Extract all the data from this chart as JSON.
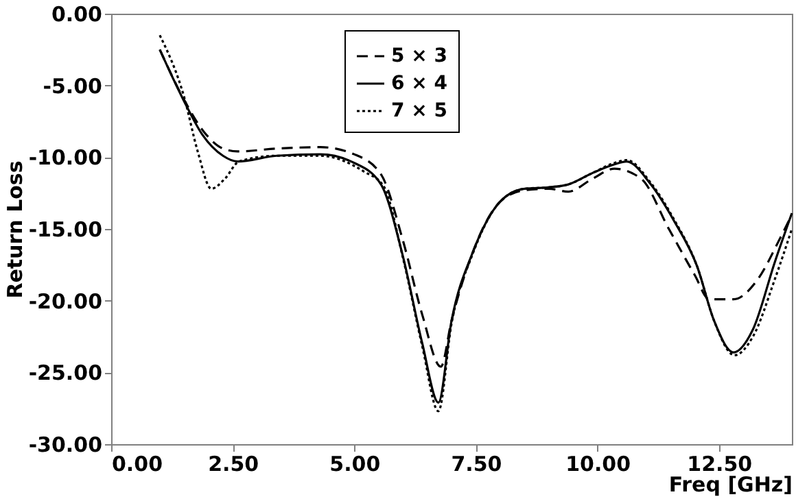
{
  "chart_data": {
    "type": "line",
    "xlabel": "Freq [GHz]",
    "ylabel": "Return Loss",
    "xlim": [
      0,
      14
    ],
    "xticks": [
      {
        "value": 0,
        "label": "0.00"
      },
      {
        "value": 2.5,
        "label": "2.50"
      },
      {
        "value": 5,
        "label": "5.00"
      },
      {
        "value": 7.5,
        "label": "7.50"
      },
      {
        "value": 10,
        "label": "10.00"
      },
      {
        "value": 12.5,
        "label": "12.50"
      }
    ],
    "ylim": [
      -30,
      0
    ],
    "yticks": [
      {
        "value": -30,
        "label": "-30.00"
      },
      {
        "value": -25,
        "label": "-25.00"
      },
      {
        "value": -20,
        "label": "-20.00"
      },
      {
        "value": -15,
        "label": "-15.00"
      },
      {
        "value": -10,
        "label": "-10.00"
      },
      {
        "value": -5,
        "label": "-5.00"
      },
      {
        "value": 0,
        "label": "0.00"
      }
    ],
    "grid": false,
    "legend": "top",
    "marker": "none",
    "series": [
      {
        "name": "5 × 3",
        "color": "#000000",
        "line_style": "dashed",
        "x": [
          1.0,
          1.5,
          1.9,
          2.3,
          2.6,
          3.4,
          4.3,
          5.0,
          5.55,
          6.0,
          6.4,
          6.78,
          7.0,
          7.44,
          8.0,
          8.5,
          9.0,
          9.4,
          9.9,
          10.35,
          10.9,
          11.47,
          12.0,
          12.3,
          12.8,
          13.3,
          13.75,
          14.0
        ],
        "values": [
          -2.5,
          -6.0,
          -8.2,
          -9.4,
          -9.6,
          -9.4,
          -9.3,
          -9.8,
          -11.2,
          -15.8,
          -21.0,
          -24.6,
          -21.4,
          -16.6,
          -13.1,
          -12.3,
          -12.2,
          -12.4,
          -11.5,
          -10.8,
          -11.5,
          -15.0,
          -18.2,
          -19.9,
          -19.9,
          -18.5,
          -15.7,
          -14.0
        ]
      },
      {
        "name": "6 × 4",
        "color": "#000000",
        "line_style": "solid",
        "x": [
          1.0,
          1.5,
          1.87,
          2.3,
          2.6,
          3.4,
          4.3,
          5.0,
          5.55,
          6.0,
          6.4,
          6.73,
          7.0,
          7.44,
          8.0,
          8.5,
          9.0,
          9.4,
          9.9,
          10.35,
          10.6,
          11.1,
          11.57,
          12.05,
          12.4,
          12.8,
          13.2,
          13.65,
          14.0
        ],
        "values": [
          -2.5,
          -6.1,
          -8.4,
          -9.9,
          -10.3,
          -9.9,
          -9.8,
          -10.4,
          -11.9,
          -16.9,
          -23.0,
          -27.1,
          -21.4,
          -16.6,
          -13.1,
          -12.2,
          -12.1,
          -11.9,
          -11.1,
          -10.5,
          -10.3,
          -11.9,
          -14.4,
          -17.6,
          -21.4,
          -23.6,
          -22.0,
          -17.3,
          -13.9
        ]
      },
      {
        "name": "7 × 5",
        "color": "#000000",
        "line_style": "dotted",
        "x": [
          1.0,
          1.5,
          1.78,
          2.06,
          2.34,
          2.63,
          3.4,
          4.3,
          5.2,
          5.6,
          6.0,
          6.4,
          6.73,
          7.0,
          7.44,
          8.0,
          8.5,
          9.0,
          9.4,
          9.9,
          10.35,
          10.6,
          11.1,
          11.57,
          12.05,
          12.4,
          12.82,
          13.2,
          13.65,
          14.0
        ],
        "values": [
          -1.5,
          -5.8,
          -9.6,
          -12.2,
          -11.5,
          -10.3,
          -9.9,
          -9.9,
          -11.0,
          -12.0,
          -17.0,
          -23.2,
          -27.7,
          -21.6,
          -16.7,
          -13.1,
          -12.2,
          -12.1,
          -11.9,
          -11.1,
          -10.4,
          -10.2,
          -11.8,
          -14.3,
          -17.6,
          -21.4,
          -23.8,
          -22.5,
          -18.5,
          -15.0
        ]
      }
    ]
  }
}
